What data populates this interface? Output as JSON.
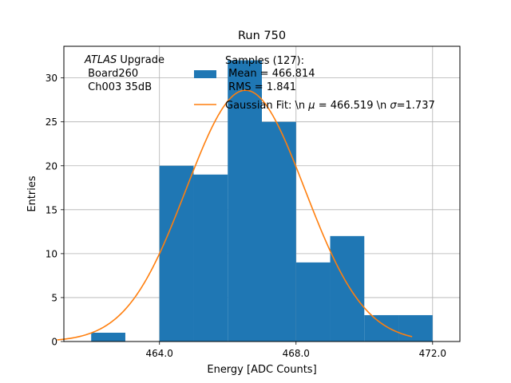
{
  "chart_data": {
    "type": "bar",
    "title": "Run 750",
    "xlabel": "Energy [ADC Counts]",
    "ylabel": "Entries",
    "xlim": [
      461.2,
      472.8
    ],
    "ylim": [
      0,
      33.6
    ],
    "grid": true,
    "x_ticks": [
      464.0,
      468.0,
      472.0
    ],
    "x_tick_labels": [
      "464.0",
      "468.0",
      "472.0"
    ],
    "y_ticks": [
      0,
      5,
      10,
      15,
      20,
      25,
      30
    ],
    "y_tick_labels": [
      "0",
      "5",
      "10",
      "15",
      "20",
      "25",
      "30"
    ],
    "bin_width": 1.0,
    "bins": [
      {
        "left": 462.0,
        "count": 1
      },
      {
        "left": 463.0,
        "count": 0
      },
      {
        "left": 464.0,
        "count": 20
      },
      {
        "left": 465.0,
        "count": 19
      },
      {
        "left": 466.0,
        "count": 32
      },
      {
        "left": 467.0,
        "count": 25
      },
      {
        "left": 468.0,
        "count": 9
      },
      {
        "left": 469.0,
        "count": 12
      },
      {
        "left": 470.0,
        "count": 3
      },
      {
        "left": 471.0,
        "count": 3
      }
    ],
    "bins_offset": 0,
    "fit": {
      "name": "Gaussian Fit",
      "mu": 466.519,
      "sigma": 1.737,
      "amplitude": 28.6,
      "x_range": [
        461.0,
        471.4
      ]
    },
    "annotation": {
      "experiment": "ATLAS",
      "line1_suffix": " Upgrade",
      "line2": " Board260",
      "line3": " Ch003 35dB"
    },
    "legend": {
      "placement": "top-right",
      "samples_line1": "Samples (127):",
      "samples_line2": " Mean = 466.814",
      "samples_line3": " RMS = 1.841",
      "fit_prefix": "Gaussian Fit: \\n ",
      "fit_mu_symbol": "μ",
      "fit_middle": " = 466.519 \\n ",
      "fit_sigma_symbol": "σ",
      "fit_suffix": "=1.737"
    },
    "colors": {
      "bars": "#1f77b4",
      "fit_line": "#ff7f0e",
      "grid": "#b0b0b0"
    }
  }
}
